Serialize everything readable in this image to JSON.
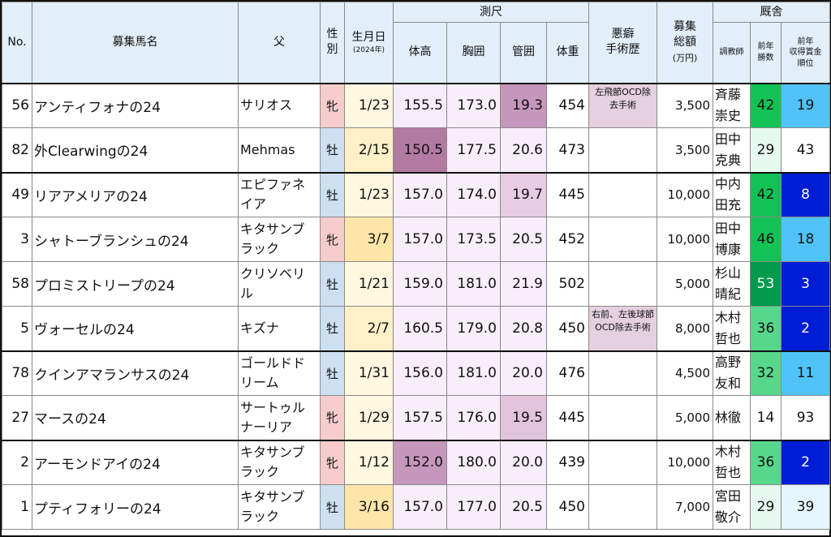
{
  "header": {
    "no": "No.",
    "name": "募集馬名",
    "sire": "父",
    "sex_l1": "性",
    "sex_l2": "別",
    "birth": "生月日",
    "birth_sub": "(2024年)",
    "measure_group": "測尺",
    "height": "体高",
    "chest": "胸囲",
    "cannon": "管囲",
    "weight": "体重",
    "vice_l1": "悪癖",
    "vice_l2": "手術歴",
    "price_l1": "募集",
    "price_l2": "総額",
    "price_l3": "(万円)",
    "stable_group": "厩舎",
    "trainer": "調教師",
    "wins_l1": "前年",
    "wins_l2": "勝数",
    "rank_l1": "前年",
    "rank_l2": "収得賞金",
    "rank_l3": "順位"
  },
  "rows": [
    {
      "no": "56",
      "name": "アンティフォナの24",
      "sire_l1": "サリオス",
      "sire_l2": "",
      "sex": "牝",
      "birth": "1/23",
      "height": "155.5",
      "chest": "173.0",
      "cannon": "19.3",
      "weight": "454",
      "vice": "左飛節OCD除去手術",
      "price": "3,500",
      "trainer_l1": "斉藤",
      "trainer_l2": "崇史",
      "wins": "42",
      "rank": "19"
    },
    {
      "no": "82",
      "name": "外Clearwingの24",
      "sire_l1": "Mehmas",
      "sire_l2": "",
      "sex": "牡",
      "birth": "2/15",
      "height": "150.5",
      "chest": "177.5",
      "cannon": "20.6",
      "weight": "473",
      "vice": "",
      "price": "3,500",
      "trainer_l1": "田中",
      "trainer_l2": "克典",
      "wins": "29",
      "rank": "43"
    },
    {
      "no": "49",
      "name": "リアアメリアの24",
      "sire_l1": "エピファネ",
      "sire_l2": "イア",
      "sex": "牡",
      "birth": "1/23",
      "height": "157.0",
      "chest": "174.0",
      "cannon": "19.7",
      "weight": "445",
      "vice": "",
      "price": "10,000",
      "trainer_l1": "中内",
      "trainer_l2": "田充",
      "wins": "42",
      "rank": "8"
    },
    {
      "no": "3",
      "name": "シャトーブランシュの24",
      "sire_l1": "キタサンブ",
      "sire_l2": "ラック",
      "sex": "牝",
      "birth": "3/7",
      "height": "157.0",
      "chest": "173.5",
      "cannon": "20.5",
      "weight": "452",
      "vice": "",
      "price": "10,000",
      "trainer_l1": "田中",
      "trainer_l2": "博康",
      "wins": "46",
      "rank": "18"
    },
    {
      "no": "58",
      "name": "プロミストリープの24",
      "sire_l1": "クリソベリ",
      "sire_l2": "ル",
      "sex": "牡",
      "birth": "1/21",
      "height": "159.0",
      "chest": "181.0",
      "cannon": "21.9",
      "weight": "502",
      "vice": "",
      "price": "5,000",
      "trainer_l1": "杉山",
      "trainer_l2": "晴紀",
      "wins": "53",
      "rank": "3"
    },
    {
      "no": "5",
      "name": "ヴォーセルの24",
      "sire_l1": "キズナ",
      "sire_l2": "",
      "sex": "牡",
      "birth": "2/7",
      "height": "160.5",
      "chest": "179.0",
      "cannon": "20.8",
      "weight": "450",
      "vice": "右前、左後球節OCD除去手術",
      "price": "8,000",
      "trainer_l1": "木村",
      "trainer_l2": "哲也",
      "wins": "36",
      "rank": "2"
    },
    {
      "no": "78",
      "name": "クインアマランサスの24",
      "sire_l1": "ゴールドド",
      "sire_l2": "リーム",
      "sex": "牡",
      "birth": "1/31",
      "height": "156.0",
      "chest": "181.0",
      "cannon": "20.0",
      "weight": "476",
      "vice": "",
      "price": "4,500",
      "trainer_l1": "高野",
      "trainer_l2": "友和",
      "wins": "32",
      "rank": "11"
    },
    {
      "no": "27",
      "name": "マースの24",
      "sire_l1": "サートゥル",
      "sire_l2": "ナーリア",
      "sex": "牝",
      "birth": "1/29",
      "height": "157.5",
      "chest": "176.0",
      "cannon": "19.5",
      "weight": "445",
      "vice": "",
      "price": "5,000",
      "trainer_l1": "林徹",
      "trainer_l2": "",
      "wins": "14",
      "rank": "93"
    },
    {
      "no": "2",
      "name": "アーモンドアイの24",
      "sire_l1": "キタサンブ",
      "sire_l2": "ラック",
      "sex": "牝",
      "birth": "1/12",
      "height": "152.0",
      "chest": "180.0",
      "cannon": "20.0",
      "weight": "439",
      "vice": "",
      "price": "10,000",
      "trainer_l1": "木村",
      "trainer_l2": "哲也",
      "wins": "36",
      "rank": "2"
    },
    {
      "no": "1",
      "name": "プティフォリーの24",
      "sire_l1": "キタサンブ",
      "sire_l2": "ラック",
      "sex": "牡",
      "birth": "3/16",
      "height": "157.0",
      "chest": "177.0",
      "cannon": "20.5",
      "weight": "450",
      "vice": "",
      "price": "7,000",
      "trainer_l1": "宮田",
      "trainer_l2": "敬介",
      "wins": "29",
      "rank": "39"
    }
  ],
  "colors": {
    "cell_base": "#f7eefa",
    "height_scale": [
      "#f5ecf9",
      "#e8cce3",
      "#c597bd",
      "#b27aa3"
    ],
    "cannon_scale": [
      "#f5ecf9",
      "#ead6e9",
      "#c597bd"
    ],
    "wins_scale": [
      "#e6f9ee",
      "#57d78c",
      "#12c257",
      "#009a4c"
    ],
    "rank_scale": [
      "#ffffff",
      "#e5f5fd",
      "#4fc3f7",
      "#001dd6"
    ],
    "sex_female": "#f6cccc",
    "sex_male": "#cde0f2",
    "vice_bg": "#e4d0de"
  }
}
